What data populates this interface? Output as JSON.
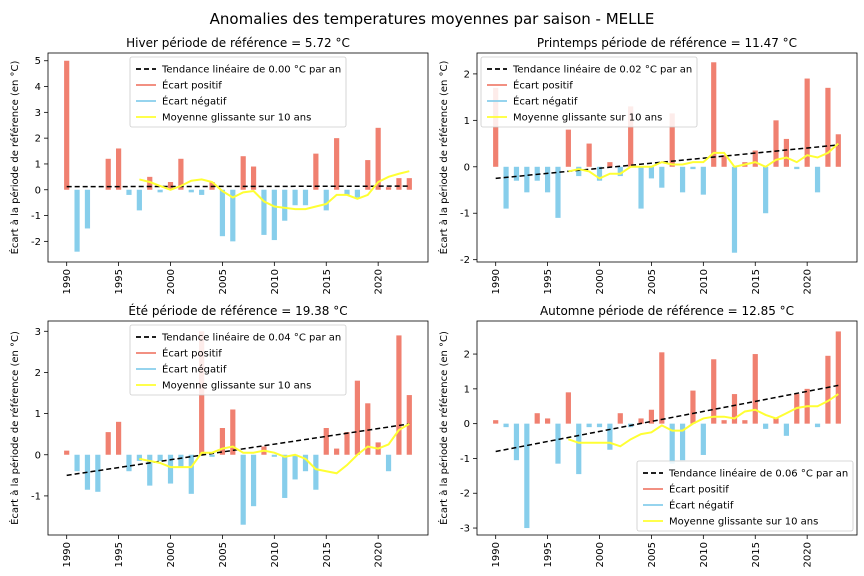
{
  "figure": {
    "suptitle": "Anomalies des temperatures moyennes par saison - MELLE"
  },
  "colors": {
    "positive": "#f08070",
    "negative": "#87ceeb",
    "trend": "#000000",
    "moving_avg": "#ffff33"
  },
  "chart_data": [
    {
      "type": "bar",
      "title": "Hiver période de référence = 5.72 °C",
      "ylabel": "Écart à la période de référence (en °C)",
      "xlabel": "",
      "legend_position": "top-center",
      "legend": [
        "Tendance linéaire de 0.00 °C par an",
        "Écart positif",
        "Écart négatif",
        "Moyenne glissante sur 10 ans"
      ],
      "xlim": [
        1988.2,
        2024.8
      ],
      "ylim": [
        -2.8,
        5.3
      ],
      "xticks": [
        1990,
        1995,
        2000,
        2005,
        2010,
        2015,
        2020
      ],
      "yticks": [
        -2,
        -1,
        0,
        1,
        2,
        3,
        4,
        5
      ],
      "years": [
        1990,
        1991,
        1992,
        1993,
        1994,
        1995,
        1996,
        1997,
        1998,
        1999,
        2000,
        2001,
        2002,
        2003,
        2004,
        2005,
        2006,
        2007,
        2008,
        2009,
        2010,
        2011,
        2012,
        2013,
        2014,
        2015,
        2016,
        2017,
        2018,
        2019,
        2020,
        2021,
        2022,
        2023
      ],
      "values": [
        5.0,
        -2.4,
        -1.5,
        0.0,
        1.2,
        1.6,
        -0.2,
        -0.8,
        0.5,
        -0.1,
        0.3,
        1.2,
        -0.1,
        -0.2,
        0.3,
        -1.8,
        -2.0,
        1.3,
        0.9,
        -1.75,
        -1.95,
        -1.2,
        -0.6,
        -0.6,
        1.4,
        -0.8,
        2.0,
        -0.2,
        -0.3,
        1.15,
        2.4,
        0.1,
        0.45,
        0.45
      ],
      "trend": {
        "start": [
          1990,
          0.12
        ],
        "end": [
          2023,
          0.14
        ]
      },
      "moving_avg": {
        "x": [
          1997,
          1998,
          1999,
          2000,
          2001,
          2002,
          2003,
          2004,
          2005,
          2006,
          2007,
          2008,
          2009,
          2010,
          2011,
          2012,
          2013,
          2014,
          2015,
          2016,
          2017,
          2018,
          2019,
          2020,
          2021,
          2022,
          2023
        ],
        "y": [
          0.4,
          0.3,
          0.15,
          0.0,
          0.15,
          0.35,
          0.4,
          0.3,
          -0.05,
          -0.3,
          -0.1,
          -0.05,
          -0.45,
          -0.65,
          -0.7,
          -0.75,
          -0.75,
          -0.65,
          -0.55,
          -0.2,
          -0.2,
          -0.35,
          -0.2,
          0.3,
          0.5,
          0.62,
          0.72
        ]
      }
    },
    {
      "type": "bar",
      "title": "Printemps période de référence = 11.47 °C",
      "ylabel": "Écart à la période de référence (en °C)",
      "xlabel": "",
      "legend_position": "top-left",
      "legend": [
        "Tendance linéaire de 0.02 °C par an",
        "Écart positif",
        "Écart négatif",
        "Moyenne glissante sur 10 ans"
      ],
      "xlim": [
        1988.2,
        2024.8
      ],
      "ylim": [
        -2.05,
        2.45
      ],
      "xticks": [
        1990,
        1995,
        2000,
        2005,
        2010,
        2015,
        2020
      ],
      "yticks": [
        -2,
        -1,
        0,
        1,
        2
      ],
      "years": [
        1990,
        1991,
        1992,
        1993,
        1994,
        1995,
        1996,
        1997,
        1998,
        1999,
        2000,
        2001,
        2002,
        2003,
        2004,
        2005,
        2006,
        2007,
        2008,
        2009,
        2010,
        2011,
        2012,
        2013,
        2014,
        2015,
        2016,
        2017,
        2018,
        2019,
        2020,
        2021,
        2022,
        2023
      ],
      "values": [
        1.7,
        -0.9,
        -0.3,
        -0.55,
        -0.3,
        -0.55,
        -1.1,
        0.8,
        -0.2,
        0.5,
        -0.3,
        0.1,
        -0.2,
        1.3,
        -0.9,
        -0.25,
        -0.45,
        1.15,
        -0.55,
        -0.05,
        -0.6,
        2.25,
        0.25,
        -1.85,
        0.1,
        0.35,
        -1.0,
        1.0,
        0.6,
        -0.05,
        1.9,
        -0.55,
        1.7,
        0.7
      ],
      "trend": {
        "start": [
          1990,
          -0.25
        ],
        "end": [
          2023,
          0.47
        ]
      },
      "moving_avg": {
        "x": [
          1997,
          1998,
          1999,
          2000,
          2001,
          2002,
          2003,
          2004,
          2005,
          2006,
          2007,
          2008,
          2009,
          2010,
          2011,
          2012,
          2013,
          2014,
          2015,
          2016,
          2017,
          2018,
          2019,
          2020,
          2021,
          2022,
          2023
        ],
        "y": [
          -0.1,
          -0.05,
          -0.1,
          -0.25,
          -0.15,
          -0.15,
          0.0,
          0.0,
          0.0,
          0.1,
          0.05,
          0.05,
          0.1,
          0.1,
          0.3,
          0.3,
          0.0,
          0.05,
          0.1,
          0.0,
          0.15,
          0.2,
          0.1,
          0.25,
          0.2,
          0.3,
          0.5
        ]
      }
    },
    {
      "type": "bar",
      "title": "Été période de référence = 19.38 °C",
      "ylabel": "Écart à la période de référence (en °C)",
      "xlabel": "",
      "legend_position": "top-center",
      "legend": [
        "Tendance linéaire de 0.04 °C par an",
        "Écart positif",
        "Écart négatif",
        "Moyenne glissante sur 10 ans"
      ],
      "xlim": [
        1988.2,
        2024.8
      ],
      "ylim": [
        -1.95,
        3.25
      ],
      "xticks": [
        1990,
        1995,
        2000,
        2005,
        2010,
        2015,
        2020
      ],
      "yticks": [
        -1,
        0,
        1,
        2,
        3
      ],
      "years": [
        1990,
        1991,
        1992,
        1993,
        1994,
        1995,
        1996,
        1997,
        1998,
        1999,
        2000,
        2001,
        2002,
        2003,
        2004,
        2005,
        2006,
        2007,
        2008,
        2009,
        2010,
        2011,
        2012,
        2013,
        2014,
        2015,
        2016,
        2017,
        2018,
        2019,
        2020,
        2021,
        2022,
        2023
      ],
      "values": [
        0.1,
        -0.4,
        -0.85,
        -0.9,
        0.55,
        0.8,
        -0.4,
        -0.15,
        -0.75,
        -0.15,
        -0.7,
        -0.3,
        -0.95,
        3.0,
        -0.05,
        0.65,
        1.1,
        -1.7,
        -1.25,
        0.2,
        -0.05,
        -1.05,
        -0.6,
        -0.4,
        -0.85,
        0.65,
        0.15,
        0.55,
        1.8,
        1.25,
        0.3,
        -0.4,
        2.9,
        1.45
      ],
      "trend": {
        "start": [
          1990,
          -0.5
        ],
        "end": [
          2023,
          0.75
        ]
      },
      "moving_avg": {
        "x": [
          1997,
          1998,
          1999,
          2000,
          2001,
          2002,
          2003,
          2004,
          2005,
          2006,
          2007,
          2008,
          2009,
          2010,
          2011,
          2012,
          2013,
          2014,
          2015,
          2016,
          2017,
          2018,
          2019,
          2020,
          2021,
          2022,
          2023
        ],
        "y": [
          -0.1,
          -0.15,
          -0.2,
          -0.3,
          -0.3,
          -0.3,
          0.05,
          0.05,
          0.15,
          0.2,
          0.05,
          0.05,
          0.1,
          0.05,
          -0.05,
          0.0,
          -0.1,
          -0.35,
          -0.4,
          -0.45,
          -0.25,
          0.0,
          0.2,
          0.15,
          0.25,
          0.6,
          0.75
        ]
      }
    },
    {
      "type": "bar",
      "title": "Automne période de référence = 12.85 °C",
      "ylabel": "Écart à la période de référence (en °C)",
      "xlabel": "",
      "legend_position": "bottom-right",
      "legend": [
        "Tendance linéaire de 0.06 °C par an",
        "Écart positif",
        "Écart négatif",
        "Moyenne glissante sur 10 ans"
      ],
      "xlim": [
        1988.2,
        2024.8
      ],
      "ylim": [
        -3.2,
        2.95
      ],
      "xticks": [
        1990,
        1995,
        2000,
        2005,
        2010,
        2015,
        2020
      ],
      "yticks": [
        -3,
        -2,
        -1,
        0,
        1,
        2
      ],
      "years": [
        1990,
        1991,
        1992,
        1993,
        1994,
        1995,
        1996,
        1997,
        1998,
        1999,
        2000,
        2001,
        2002,
        2003,
        2004,
        2005,
        2006,
        2007,
        2008,
        2009,
        2010,
        2011,
        2012,
        2013,
        2014,
        2015,
        2016,
        2017,
        2018,
        2019,
        2020,
        2021,
        2022,
        2023
      ],
      "values": [
        0.1,
        -0.1,
        -1.05,
        -3.0,
        0.3,
        0.15,
        -1.15,
        0.9,
        -1.45,
        -0.1,
        -0.1,
        -0.75,
        0.3,
        -0.1,
        0.15,
        0.4,
        2.05,
        -1.15,
        -1.05,
        0.95,
        -0.9,
        1.85,
        0.1,
        0.85,
        0.1,
        2.0,
        -0.15,
        0.15,
        -0.35,
        0.85,
        1.0,
        -0.1,
        1.95,
        2.65
      ],
      "trend": {
        "start": [
          1990,
          -0.8
        ],
        "end": [
          2023,
          1.1
        ]
      },
      "moving_avg": {
        "x": [
          1997,
          1998,
          1999,
          2000,
          2001,
          2002,
          2003,
          2004,
          2005,
          2006,
          2007,
          2008,
          2009,
          2010,
          2011,
          2012,
          2013,
          2014,
          2015,
          2016,
          2017,
          2018,
          2019,
          2020,
          2021,
          2022,
          2023
        ],
        "y": [
          -0.45,
          -0.55,
          -0.55,
          -0.55,
          -0.55,
          -0.65,
          -0.45,
          -0.3,
          -0.25,
          -0.05,
          -0.2,
          -0.2,
          0.0,
          0.15,
          0.2,
          0.2,
          0.15,
          0.35,
          0.4,
          0.25,
          0.15,
          0.3,
          0.45,
          0.5,
          0.5,
          0.65,
          0.85
        ]
      }
    }
  ]
}
